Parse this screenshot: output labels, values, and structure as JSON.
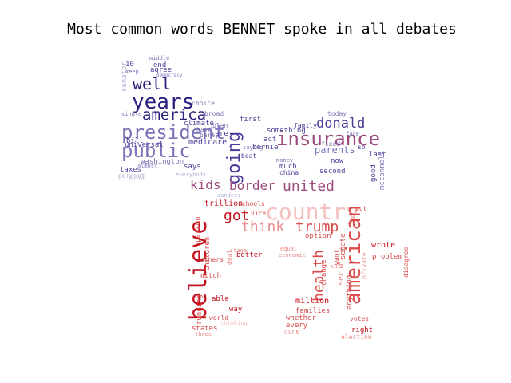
{
  "title": "Most common words BENNET spoke in all debates",
  "colors": {
    "blue_dark": "#2a2180",
    "blue_mid": "#4a3d9a",
    "blue_light": "#7b74b8",
    "blue_pale": "#b3b0d6",
    "red_dark": "#c4121e",
    "red_mid": "#d94a4a",
    "red_light": "#e98a8a",
    "red_pale": "#f4c0c0",
    "mauve": "#9a4a7c"
  },
  "words": [
    {
      "t": "years",
      "c": "blue_dark"
    },
    {
      "t": "america",
      "c": "blue_dark"
    },
    {
      "t": "well",
      "c": "blue_dark"
    },
    {
      "t": "president",
      "c": "blue_light"
    },
    {
      "t": "public",
      "c": "blue_light"
    },
    {
      "t": "insurance",
      "c": "mauve"
    },
    {
      "t": "donald",
      "c": "blue_mid"
    },
    {
      "t": "going",
      "c": "blue_mid"
    },
    {
      "t": "parents",
      "c": "blue_light"
    },
    {
      "t": "kids",
      "c": "mauve"
    },
    {
      "t": "border",
      "c": "mauve"
    },
    {
      "t": "united",
      "c": "mauve"
    },
    {
      "t": "medicare",
      "c": "blue_mid"
    },
    {
      "t": "universal",
      "c": "blue_mid"
    },
    {
      "t": "washington",
      "c": "blue_light"
    },
    {
      "t": "taxes",
      "c": "blue_mid"
    },
    {
      "t": "bill",
      "c": "blue_mid"
    },
    {
      "t": "percent",
      "c": "blue_pale"
    },
    {
      "t": "climate",
      "c": "blue_mid"
    },
    {
      "t": "agree",
      "c": "blue_mid"
    },
    {
      "t": "end",
      "c": "blue_mid"
    },
    {
      "t": "middle",
      "c": "blue_light"
    },
    {
      "t": "care",
      "c": "blue_mid"
    },
    {
      "t": "first",
      "c": "blue_mid"
    },
    {
      "t": "act",
      "c": "blue_mid"
    },
    {
      "t": "family",
      "c": "blue_mid"
    },
    {
      "t": "something",
      "c": "blue_mid"
    },
    {
      "t": "bernie",
      "c": "blue_mid"
    },
    {
      "t": "says",
      "c": "blue_mid"
    },
    {
      "t": "beat",
      "c": "blue_mid"
    },
    {
      "t": "much",
      "c": "blue_mid"
    },
    {
      "t": "china",
      "c": "blue_mid"
    },
    {
      "t": "second",
      "c": "blue_mid"
    },
    {
      "t": "now",
      "c": "blue_mid"
    },
    {
      "t": "last",
      "c": "blue_mid"
    },
    {
      "t": "good",
      "c": "blue_mid"
    },
    {
      "t": "today",
      "c": "blue_light"
    },
    {
      "t": "fixed",
      "c": "blue_light"
    },
    {
      "t": "mcconnell",
      "c": "blue_light"
    },
    {
      "t": "choice",
      "c": "blue_light"
    },
    {
      "t": "broad",
      "c": "blue_light"
    },
    {
      "t": "plan",
      "c": "blue_light"
    },
    {
      "t": "hard",
      "c": "blue_light"
    },
    {
      "t": "party",
      "c": "blue_light"
    },
    {
      "t": "single",
      "c": "blue_light"
    },
    {
      "t": "keep",
      "c": "blue_light"
    },
    {
      "t": "almost",
      "c": "blue_light"
    },
    {
      "t": "saying",
      "c": "blue_light"
    },
    {
      "t": "money",
      "c": "blue_light"
    },
    {
      "t": "senator",
      "c": "blue_pale"
    },
    {
      "t": "10",
      "c": "blue_mid"
    },
    {
      "t": "so",
      "c": "blue_mid"
    },
    {
      "t": "face",
      "c": "blue_light"
    },
    {
      "t": "everybody",
      "c": "blue_pale"
    },
    {
      "t": "sanders",
      "c": "blue_pale"
    },
    {
      "t": "democracy",
      "c": "blue_light"
    },
    {
      "t": "build",
      "c": "blue_pale"
    },
    {
      "t": "country",
      "c": "red_pale"
    },
    {
      "t": "believe",
      "c": "red_dark"
    },
    {
      "t": "american",
      "c": "red_mid"
    },
    {
      "t": "health",
      "c": "red_mid"
    },
    {
      "t": "got",
      "c": "red_dark"
    },
    {
      "t": "think",
      "c": "red_light"
    },
    {
      "t": "trump",
      "c": "red_mid"
    },
    {
      "t": "trillion",
      "c": "red_dark"
    },
    {
      "t": "wrote",
      "c": "red_dark"
    },
    {
      "t": "security",
      "c": "red_light"
    },
    {
      "t": "million",
      "c": "red_dark"
    },
    {
      "t": "families",
      "c": "red_mid"
    },
    {
      "t": "whether",
      "c": "red_mid"
    },
    {
      "t": "every",
      "c": "red_mid"
    },
    {
      "t": "done",
      "c": "red_light"
    },
    {
      "t": "right",
      "c": "red_dark"
    },
    {
      "t": "election",
      "c": "red_light"
    },
    {
      "t": "states",
      "c": "red_mid"
    },
    {
      "t": "world",
      "c": "red_mid"
    },
    {
      "t": "able",
      "c": "red_dark"
    },
    {
      "t": "way",
      "c": "red_dark"
    },
    {
      "t": "mitch",
      "c": "red_mid"
    },
    {
      "t": "others",
      "c": "red_mid"
    },
    {
      "t": "running",
      "c": "red_mid"
    },
    {
      "t": "children",
      "c": "red_mid"
    },
    {
      "t": "person",
      "c": "red_mid"
    },
    {
      "t": "better",
      "c": "red_dark"
    },
    {
      "t": "option",
      "c": "red_mid"
    },
    {
      "t": "change",
      "c": "red_mid"
    },
    {
      "t": "senate",
      "c": "red_mid"
    },
    {
      "t": "anything",
      "c": "red_mid"
    },
    {
      "t": "problem",
      "c": "red_mid"
    },
    {
      "t": "private",
      "c": "red_light"
    },
    {
      "t": "disagree",
      "c": "red_mid"
    },
    {
      "t": "votes",
      "c": "red_mid"
    },
    {
      "t": "schools",
      "c": "red_mid"
    },
    {
      "t": "vice",
      "c": "red_mid"
    },
    {
      "t": "equal",
      "c": "red_light"
    },
    {
      "t": "economic",
      "c": "red_light"
    },
    {
      "t": "put",
      "c": "red_mid"
    },
    {
      "t": "cuts",
      "c": "red_light"
    },
    {
      "t": "three",
      "c": "red_light"
    },
    {
      "t": "thinking",
      "c": "red_pale"
    },
    {
      "t": "stage",
      "c": "red_light"
    },
    {
      "t": "deal",
      "c": "red_light"
    },
    {
      "t": "want",
      "c": "red_mid"
    }
  ]
}
